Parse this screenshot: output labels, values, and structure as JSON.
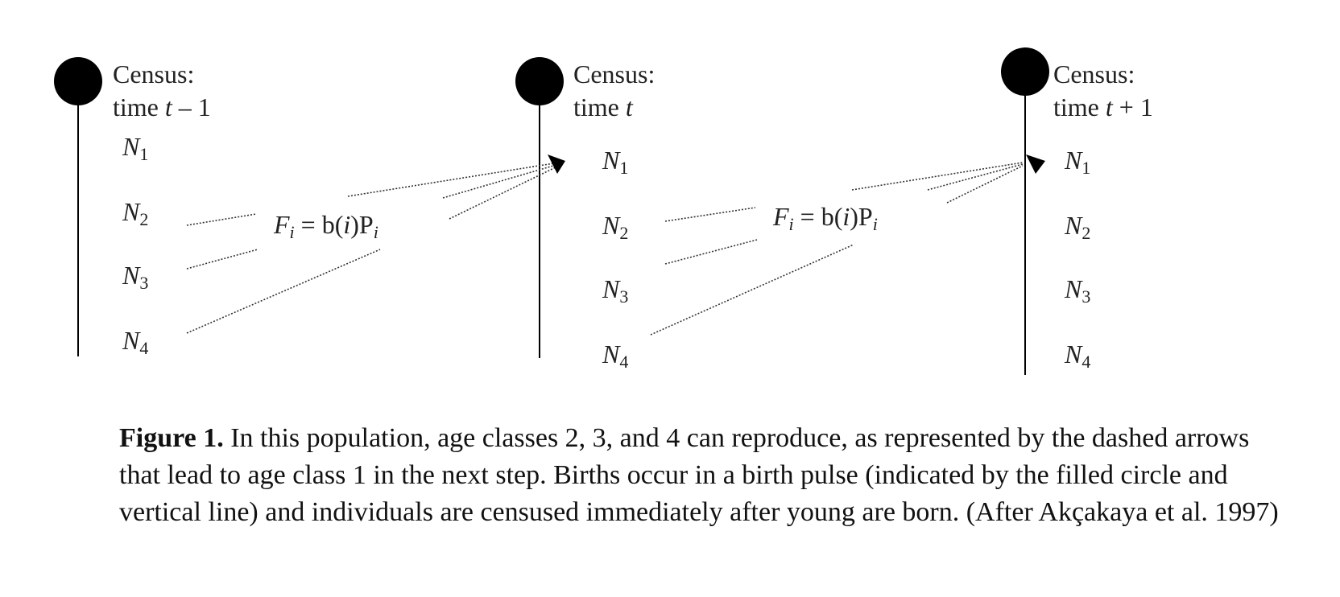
{
  "diagram": {
    "censuses": [
      {
        "label_line1": "Census:",
        "label_line2_prefix": "time ",
        "label_line2_var": "t",
        "label_line2_suffix": " – 1"
      },
      {
        "label_line1": "Census:",
        "label_line2_prefix": "time ",
        "label_line2_var": "t",
        "label_line2_suffix": ""
      },
      {
        "label_line1": "Census:",
        "label_line2_prefix": "time ",
        "label_line2_var": "t",
        "label_line2_suffix": " + 1"
      }
    ],
    "age_classes": [
      {
        "var": "N",
        "sub": "1"
      },
      {
        "var": "N",
        "sub": "2"
      },
      {
        "var": "N",
        "sub": "3"
      },
      {
        "var": "N",
        "sub": "4"
      }
    ],
    "equation": {
      "F": "F",
      "i": "i",
      "middle": " = b(",
      "i2": "i",
      "close": ")P",
      "i3": "i"
    }
  },
  "caption": {
    "bold": "Figure 1.",
    "text": " In this population, age classes 2, 3, and 4 can reproduce, as represented by the dashed arrows that lead to age class 1 in the next step. Births occur in a birth pulse (indicated by the filled circle and vertical line) and individuals are censused immediately after young are born. (After Akçakaya et al. 1997)"
  }
}
